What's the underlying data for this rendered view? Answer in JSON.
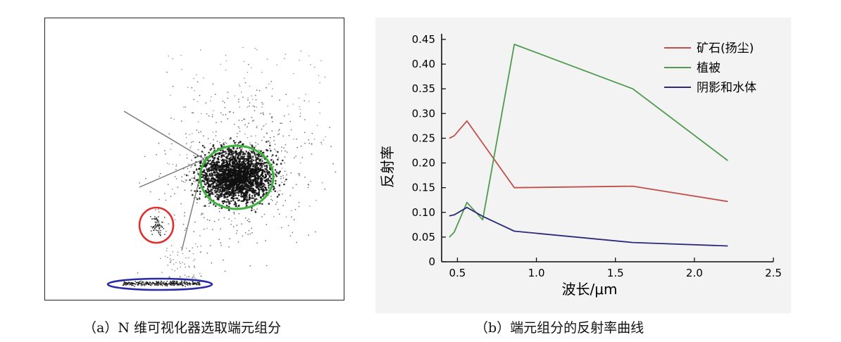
{
  "captions": {
    "a": "（a）N 维可视化器选取端元组分",
    "b": "（b）端元组分的反射率曲线"
  },
  "scatter_panel": {
    "selection_colors": {
      "vegetation": "#3cb43c",
      "mineral": "#e03030",
      "shadow_water": "#2a2aa8"
    }
  },
  "chart_data": {
    "type": "line",
    "title": "",
    "xlabel": "波长/μm",
    "ylabel": "反射率",
    "xlim": [
      0.4,
      2.5
    ],
    "ylim": [
      0,
      0.45
    ],
    "xticks": [
      0.5,
      1.0,
      1.5,
      2.0,
      2.5
    ],
    "xtick_labels": [
      "0.5",
      "1.0",
      "1.5",
      "2.0",
      "2.5"
    ],
    "yticks": [
      0,
      0.05,
      0.1,
      0.15,
      0.2,
      0.25,
      0.3,
      0.35,
      0.4,
      0.45
    ],
    "ytick_labels": [
      "0",
      "0.05",
      "0.10",
      "0.15",
      "0.20",
      "0.25",
      "0.30",
      "0.35",
      "0.40",
      "0.45"
    ],
    "legend_position": "top-right",
    "grid": false,
    "series": [
      {
        "name": "矿石(扬尘)",
        "color": "#c0504d",
        "x": [
          0.45,
          0.48,
          0.56,
          0.66,
          0.86,
          1.61,
          2.21
        ],
        "y": [
          0.25,
          0.255,
          0.285,
          0.24,
          0.15,
          0.153,
          0.122
        ]
      },
      {
        "name": "植被",
        "color": "#4e9a4e",
        "x": [
          0.45,
          0.48,
          0.56,
          0.66,
          0.86,
          1.61,
          2.21
        ],
        "y": [
          0.05,
          0.06,
          0.12,
          0.085,
          0.44,
          0.35,
          0.205
        ]
      },
      {
        "name": "阴影和水体",
        "color": "#2b2b7a",
        "x": [
          0.45,
          0.48,
          0.56,
          0.66,
          0.86,
          1.61,
          2.21
        ],
        "y": [
          0.093,
          0.095,
          0.11,
          0.092,
          0.062,
          0.039,
          0.032
        ]
      }
    ]
  }
}
